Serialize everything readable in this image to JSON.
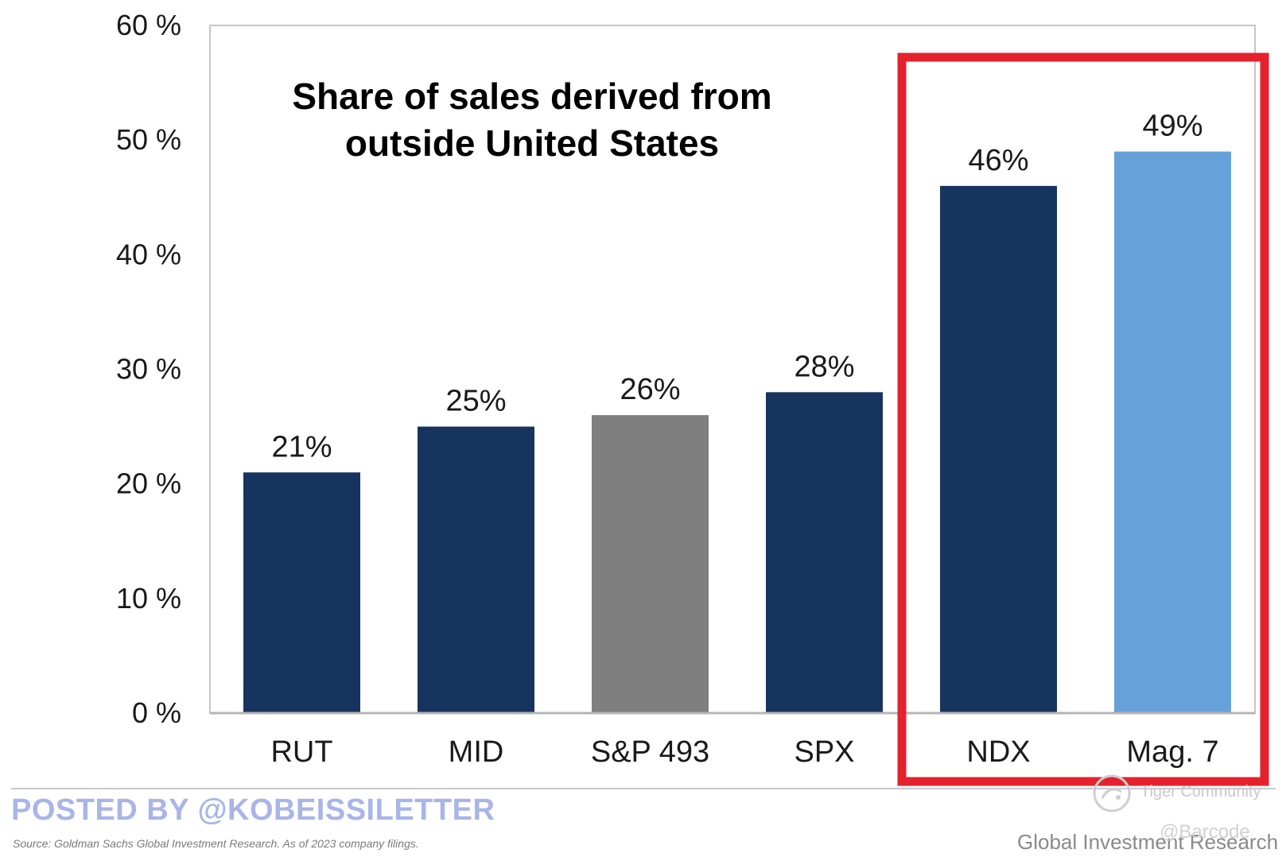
{
  "chart_data": {
    "type": "bar",
    "title": [
      "Share of sales derived from",
      "outside United States"
    ],
    "categories": [
      "RUT",
      "MID",
      "S&P 493",
      "SPX",
      "NDX",
      "Mag. 7"
    ],
    "values": [
      21,
      25,
      26,
      28,
      46,
      49
    ],
    "value_labels": [
      "21%",
      "25%",
      "26%",
      "28%",
      "46%",
      "49%"
    ],
    "bar_colors": [
      "#17345f",
      "#17345f",
      "#7f7f7f",
      "#17345f",
      "#17345f",
      "#66a2d9"
    ],
    "ylim": [
      0,
      60
    ],
    "yticks": [
      0,
      10,
      20,
      30,
      40,
      50,
      60
    ],
    "ytick_labels": [
      "0 %",
      "10 %",
      "20 %",
      "30 %",
      "40 %",
      "50 %",
      "60 %"
    ],
    "xlabel": "",
    "ylabel": "",
    "grid": false,
    "highlight": {
      "categories": [
        "NDX",
        "Mag. 7"
      ],
      "color": "#e4222d"
    }
  },
  "footer": {
    "posted_by": "POSTED BY @KOBEISSILETTER",
    "source": "Source: Goldman Sachs Global Investment Research. As of 2023 company filings.",
    "brand": "Global Investment Research"
  },
  "watermarks": {
    "community": "Tiger Community",
    "user": "@Barcode"
  }
}
